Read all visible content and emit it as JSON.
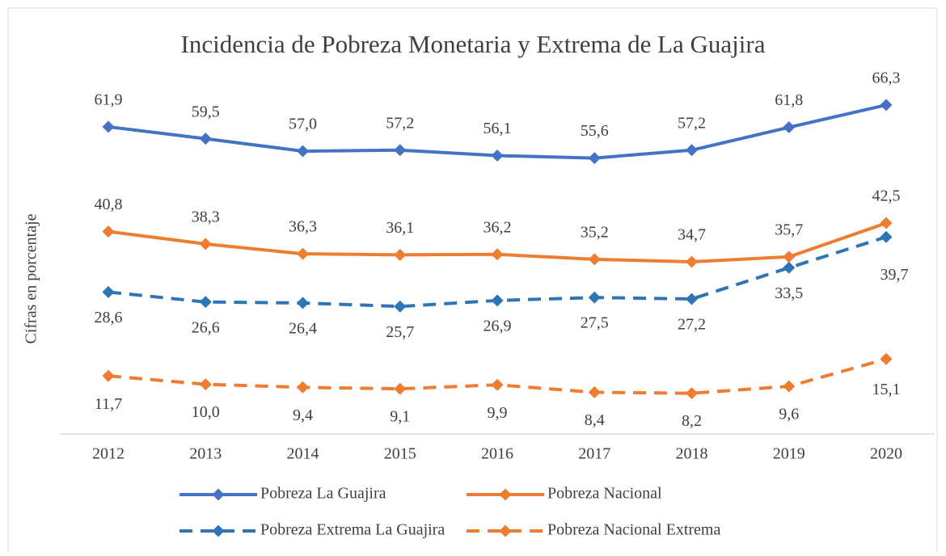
{
  "chart_data": {
    "type": "line",
    "title": "Incidencia de Pobreza Monetaria y Extrema de La Guajira",
    "y_label": "Cifras en porcentaje",
    "categories": [
      "2012",
      "2013",
      "2014",
      "2015",
      "2016",
      "2017",
      "2018",
      "2019",
      "2020"
    ],
    "ylim": [
      0,
      70
    ],
    "series": [
      {
        "name": "Pobreza La Guajira",
        "color": "#4472c4",
        "dashed": false,
        "values": [
          61.9,
          59.5,
          57.0,
          57.2,
          56.1,
          55.6,
          57.2,
          61.8,
          66.3
        ],
        "value_labels": [
          "61,9",
          "59,5",
          "57,0",
          "57,2",
          "56,1",
          "55,6",
          "57,2",
          "61,8",
          "66,3"
        ]
      },
      {
        "name": "Pobreza Nacional",
        "color": "#ed7d31",
        "dashed": false,
        "values": [
          40.8,
          38.3,
          36.3,
          36.1,
          36.2,
          35.2,
          34.7,
          35.7,
          42.5
        ],
        "value_labels": [
          "40,8",
          "38,3",
          "36,3",
          "36,1",
          "36,2",
          "35,2",
          "34,7",
          "35,7",
          "42,5"
        ]
      },
      {
        "name": "Pobreza Extrema La Guajira",
        "color": "#2e75b6",
        "dashed": true,
        "values": [
          28.6,
          26.6,
          26.4,
          25.7,
          26.9,
          27.5,
          27.2,
          33.5,
          39.7
        ],
        "value_labels": [
          "28,6",
          "26,6",
          "26,4",
          "25,7",
          "26,9",
          "27,5",
          "27,2",
          "33,5",
          "39,7"
        ]
      },
      {
        "name": "Pobreza Nacional Extrema",
        "color": "#ed7d31",
        "dashed": true,
        "values": [
          11.7,
          10.0,
          9.4,
          9.1,
          9.9,
          8.4,
          8.2,
          9.6,
          15.1
        ],
        "value_labels": [
          "11,7",
          "10,0",
          "9,4",
          "9,1",
          "9,9",
          "8,4",
          "8,2",
          "9,6",
          "15,1"
        ]
      }
    ]
  }
}
